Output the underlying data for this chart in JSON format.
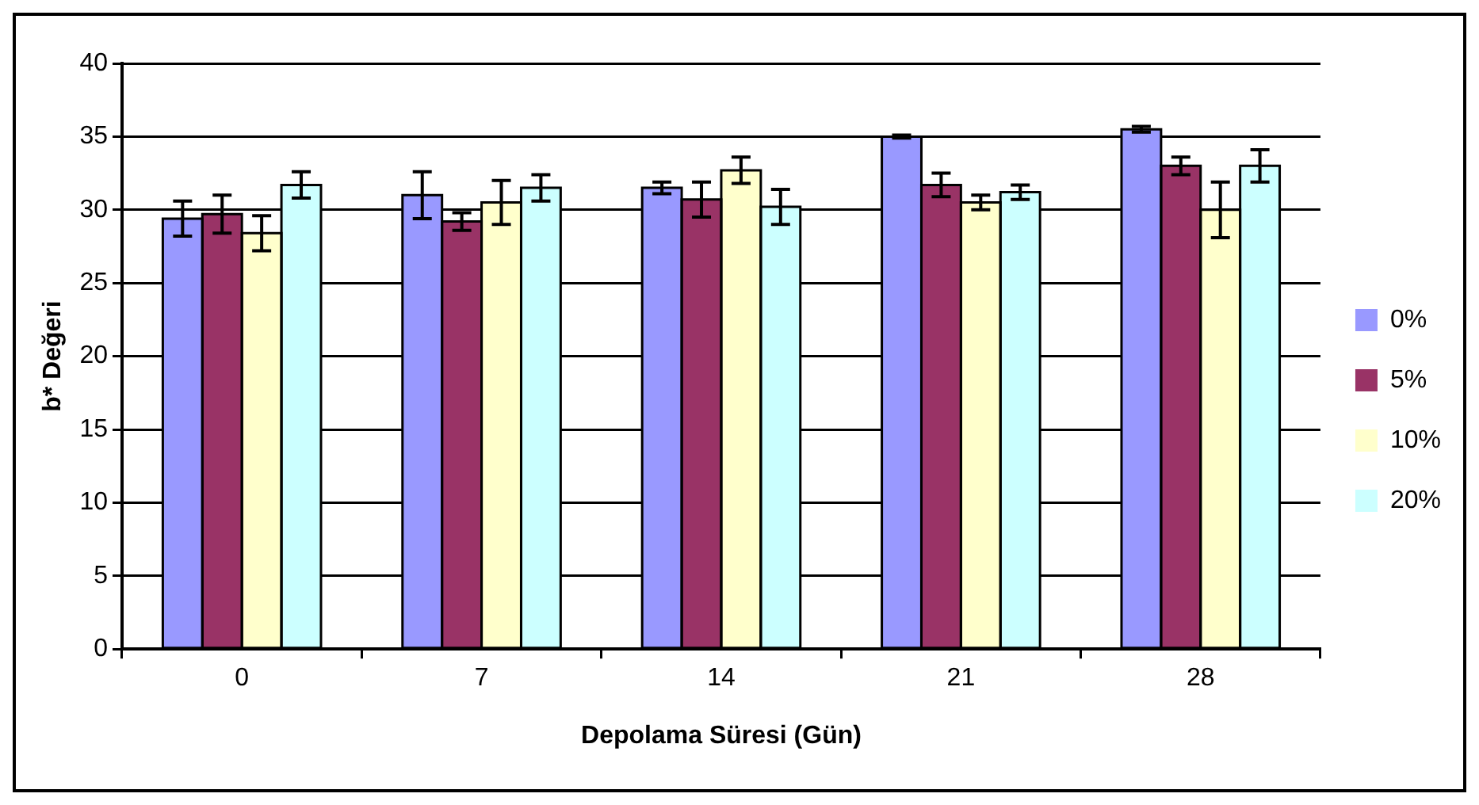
{
  "chart_data": {
    "type": "bar",
    "xlabel": "Depolama Süresi (Gün)",
    "ylabel": "b* Değeri",
    "categories": [
      "0",
      "7",
      "14",
      "21",
      "28"
    ],
    "series": [
      {
        "name": "0%",
        "color": "#9999ff",
        "values": [
          29.4,
          31.0,
          31.5,
          35.0,
          35.5
        ],
        "errors": [
          1.2,
          1.6,
          0.4,
          0.1,
          0.2
        ]
      },
      {
        "name": "5%",
        "color": "#993366",
        "values": [
          29.7,
          29.2,
          30.7,
          31.7,
          33.0
        ],
        "errors": [
          1.3,
          0.6,
          1.2,
          0.8,
          0.6
        ]
      },
      {
        "name": "10%",
        "color": "#ffffcc",
        "values": [
          28.4,
          30.5,
          32.7,
          30.5,
          30.0
        ],
        "errors": [
          1.2,
          1.5,
          0.9,
          0.5,
          1.9
        ]
      },
      {
        "name": "20%",
        "color": "#ccffff",
        "values": [
          31.7,
          31.5,
          30.2,
          31.2,
          33.0
        ],
        "errors": [
          0.9,
          0.9,
          1.2,
          0.5,
          1.1
        ]
      }
    ],
    "ylim": [
      0,
      40
    ],
    "yticks": [
      0,
      5,
      10,
      15,
      20,
      25,
      30,
      35,
      40
    ],
    "grid": "y",
    "legend": "right"
  }
}
